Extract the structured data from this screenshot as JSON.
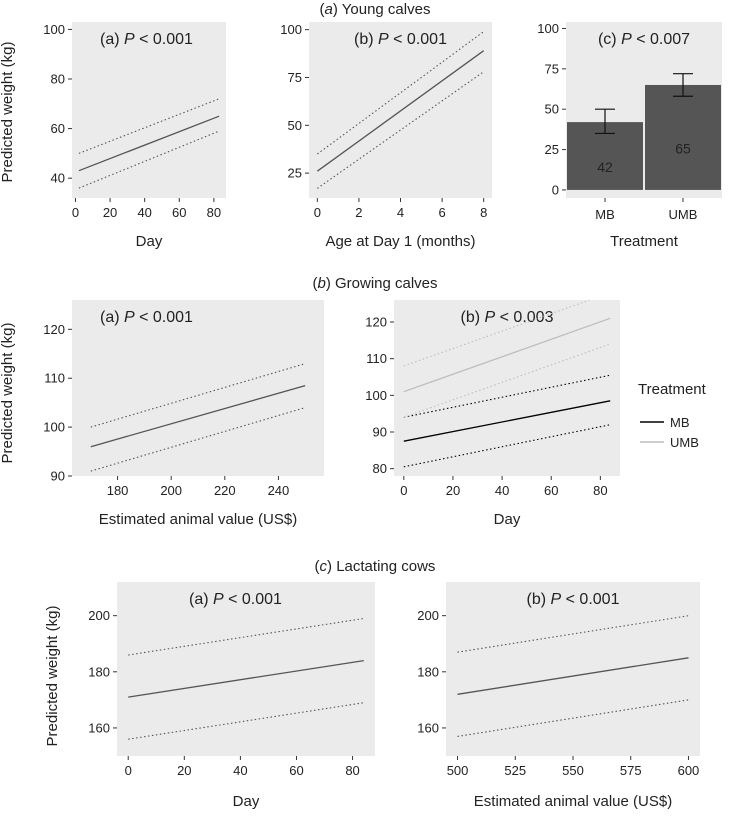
{
  "figure": {
    "sections": [
      {
        "prefix": "(",
        "letter": "a",
        "suffix": ") Young calves"
      },
      {
        "prefix": "(",
        "letter": "b",
        "suffix": ") Growing calves"
      },
      {
        "prefix": "(",
        "letter": "c",
        "suffix": ") Lactating cows"
      }
    ],
    "legend": {
      "title": "Treatment",
      "items": [
        "MB",
        "UMB"
      ],
      "colors": [
        "#000000",
        "#bdbdbd"
      ]
    }
  },
  "chart_data": [
    {
      "type": "line",
      "section": 0,
      "panel_label": "(a)",
      "p_text": "P",
      "p_value": "< 0.001",
      "xlabel": "Day",
      "ylabel": "Predicted weight (kg)",
      "xlim": [
        -2,
        87
      ],
      "ylim": [
        32,
        103
      ],
      "xticks": [
        0,
        20,
        40,
        60,
        80
      ],
      "yticks": [
        40,
        60,
        80,
        100
      ],
      "series": [
        {
          "color": "#555555",
          "x": [
            2,
            83
          ],
          "y": [
            43,
            65
          ],
          "ci_lower": [
            36,
            59
          ],
          "ci_upper": [
            50,
            72
          ]
        }
      ]
    },
    {
      "type": "line",
      "section": 0,
      "panel_label": "(b)",
      "p_text": "P",
      "p_value": "< 0.001",
      "xlabel": "Age at Day 1 (months)",
      "ylabel": "",
      "xlim": [
        -0.4,
        8.4
      ],
      "ylim": [
        12,
        104
      ],
      "xticks": [
        0,
        2,
        4,
        6,
        8
      ],
      "yticks": [
        25,
        50,
        75,
        100
      ],
      "series": [
        {
          "color": "#555555",
          "x": [
            0,
            8
          ],
          "y": [
            26,
            89
          ],
          "ci_lower": [
            17,
            78
          ],
          "ci_upper": [
            35,
            99
          ]
        }
      ]
    },
    {
      "type": "bar",
      "section": 0,
      "panel_label": "(c)",
      "p_text": "P",
      "p_value": "< 0.007",
      "xlabel": "Treatment",
      "ylabel": "",
      "categories": [
        "MB",
        "UMB"
      ],
      "values": [
        42,
        65
      ],
      "error_low": [
        35,
        58
      ],
      "error_high": [
        50,
        72
      ],
      "ylim": [
        -5,
        104
      ],
      "yticks": [
        0,
        25,
        50,
        75,
        100
      ]
    },
    {
      "type": "line",
      "section": 1,
      "panel_label": "(a)",
      "p_text": "P",
      "p_value": "< 0.001",
      "xlabel": "Estimated animal value (US$)",
      "ylabel": "Predicted weight (kg)",
      "xlim": [
        163,
        257
      ],
      "ylim": [
        90,
        126
      ],
      "xticks": [
        180,
        200,
        220,
        240
      ],
      "yticks": [
        90,
        100,
        110,
        120
      ],
      "series": [
        {
          "color": "#555555",
          "x": [
            170,
            250
          ],
          "y": [
            96,
            108.5
          ],
          "ci_lower": [
            91,
            104
          ],
          "ci_upper": [
            100,
            113
          ]
        }
      ]
    },
    {
      "type": "line",
      "section": 1,
      "panel_label": "(b)",
      "p_text": "P",
      "p_value": "< 0.003",
      "xlabel": "Day",
      "ylabel": "",
      "xlim": [
        -4,
        88
      ],
      "ylim": [
        78,
        126
      ],
      "xticks": [
        0,
        20,
        40,
        60,
        80
      ],
      "yticks": [
        80,
        90,
        100,
        110,
        120
      ],
      "series": [
        {
          "name": "MB",
          "color": "#000000",
          "x": [
            0,
            84
          ],
          "y": [
            87.5,
            98.5
          ],
          "ci_lower": [
            80.5,
            92
          ],
          "ci_upper": [
            94,
            105.5
          ]
        },
        {
          "name": "UMB",
          "color": "#bdbdbd",
          "x": [
            0,
            84
          ],
          "y": [
            101,
            121
          ],
          "ci_lower": [
            94,
            114
          ],
          "ci_upper": [
            108,
            128
          ]
        }
      ]
    },
    {
      "type": "line",
      "section": 2,
      "panel_label": "(a)",
      "p_text": "P",
      "p_value": "< 0.001",
      "xlabel": "Day",
      "ylabel": "Predicted weight (kg)",
      "xlim": [
        -4,
        88
      ],
      "ylim": [
        150,
        212
      ],
      "xticks": [
        0,
        20,
        40,
        60,
        80
      ],
      "yticks": [
        160,
        180,
        200
      ],
      "series": [
        {
          "color": "#555555",
          "x": [
            0,
            84
          ],
          "y": [
            171,
            184
          ],
          "ci_lower": [
            156,
            169
          ],
          "ci_upper": [
            186,
            199
          ]
        }
      ]
    },
    {
      "type": "line",
      "section": 2,
      "panel_label": "(b)",
      "p_text": "P",
      "p_value": "< 0.001",
      "xlabel": "Estimated animal value (US$)",
      "ylabel": "",
      "xlim": [
        495,
        605
      ],
      "ylim": [
        150,
        212
      ],
      "xticks": [
        500,
        525,
        550,
        575,
        600
      ],
      "yticks": [
        160,
        180,
        200
      ],
      "series": [
        {
          "color": "#555555",
          "x": [
            500,
            600
          ],
          "y": [
            172,
            185
          ],
          "ci_lower": [
            157,
            170
          ],
          "ci_upper": [
            187,
            200
          ]
        }
      ]
    }
  ]
}
